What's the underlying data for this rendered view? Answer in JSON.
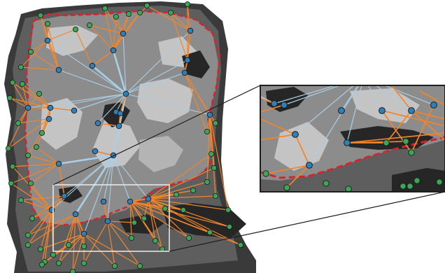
{
  "colors": {
    "background": "#ffffff",
    "terrain_dark": "#2a2a2a",
    "terrain_mid": "#5a5a5a",
    "terrain_base": "#8a8a8a",
    "terrain_light": "#bdbdbd",
    "boundary": "#d8232a",
    "edge_orange": "#f2852a",
    "edge_blue": "#a9cfe6",
    "node_blue": "#2f7fb8",
    "node_green": "#3aa657",
    "node_stroke": "#1b1b1b",
    "inset_frame": "#e6e6e6",
    "zoom_frame": "#1e1e1e"
  },
  "icons": {
    "blue_node": "circle",
    "green_node": "circle"
  }
}
